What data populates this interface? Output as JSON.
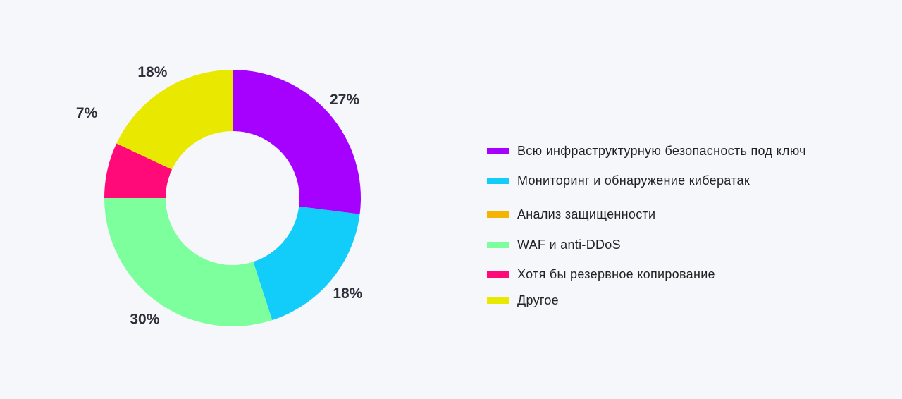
{
  "chart_data": {
    "type": "pie",
    "donut": true,
    "categories": [
      "Всю инфраструктурную безопасность под ключ",
      "Мониторинг и обнаружение кибератак",
      "Анализ защищенности",
      "WAF и anti-DDoS",
      "Хотя бы резервное копирование",
      "Другое"
    ],
    "values": [
      27,
      18,
      0,
      30,
      7,
      18
    ],
    "labels": [
      "27%",
      "18%",
      "",
      "30%",
      "7%",
      "18%"
    ],
    "colors": [
      "#a600ff",
      "#12cdfa",
      "#f5b400",
      "#7dff9e",
      "#ff0a78",
      "#e9e800"
    ],
    "legend_position": "right"
  }
}
